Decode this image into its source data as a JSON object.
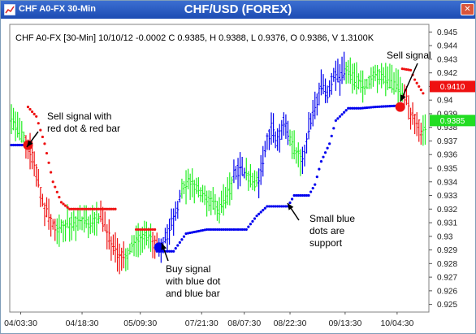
{
  "window": {
    "title": "CHF A0-FX 30-Min",
    "chart_title": "CHF/USD (FOREX)",
    "close_glyph": "✕"
  },
  "colors": {
    "bull": "#0000ee",
    "bear": "#ee1111",
    "neutral": "#22ee22",
    "last_price_bg": "#ee1111",
    "green_label_bg": "#22dd22",
    "window_frame": "#1c4bb3"
  },
  "chart_data": {
    "type": "ohlc",
    "symbol": "CHF A0-FX",
    "interval": "30-Min",
    "info_line": "CHF A0-FX [30-Min] 10/10/12  -0.0002 C 0.9385, H 0.9388, L 0.9376, O 0.9386, V 1.3100K",
    "title": "CHF/USD (FOREX)",
    "ylim": [
      0.9245,
      0.9455
    ],
    "y_ticks": [
      "0.945",
      "0.944",
      "0.943",
      "0.942",
      "0.941",
      "0.94",
      "0.939",
      "0.938",
      "0.937",
      "0.936",
      "0.935",
      "0.934",
      "0.933",
      "0.932",
      "0.931",
      "0.93",
      "0.929",
      "0.928",
      "0.927",
      "0.926",
      "0.925"
    ],
    "x_ticks": [
      "04/03:30",
      "04/18:30",
      "05/09:30",
      "07/21:30",
      "08/07:30",
      "08/22:30",
      "09/13:30",
      "10/04:30"
    ],
    "last_price_labels": [
      {
        "value": 0.941,
        "text": "0.9410",
        "color": "red"
      },
      {
        "value": 0.9385,
        "text": "0.9385",
        "color": "green"
      }
    ],
    "bar_segments": [
      {
        "color": "green",
        "path": [
          [
            0,
            0.9385
          ],
          [
            8,
            0.9375
          ],
          [
            14,
            0.937
          ]
        ]
      },
      {
        "color": "red",
        "path": [
          [
            14,
            0.937
          ],
          [
            22,
            0.9355
          ],
          [
            30,
            0.9325
          ],
          [
            38,
            0.931
          ],
          [
            44,
            0.9305
          ]
        ]
      },
      {
        "color": "green",
        "path": [
          [
            44,
            0.9305
          ],
          [
            54,
            0.931
          ],
          [
            66,
            0.931
          ],
          [
            78,
            0.931
          ],
          [
            86,
            0.9315
          ]
        ]
      },
      {
        "color": "red",
        "path": [
          [
            86,
            0.9315
          ],
          [
            96,
            0.9295
          ],
          [
            104,
            0.9285
          ],
          [
            110,
            0.9285
          ]
        ]
      },
      {
        "color": "green",
        "path": [
          [
            110,
            0.9285
          ],
          [
            118,
            0.9295
          ],
          [
            126,
            0.93
          ],
          [
            136,
            0.9297
          ]
        ]
      },
      {
        "color": "red",
        "path": [
          [
            136,
            0.9297
          ],
          [
            142,
            0.9292
          ]
        ]
      },
      {
        "color": "blue",
        "path": [
          [
            142,
            0.9292
          ],
          [
            148,
            0.9298
          ],
          [
            154,
            0.931
          ],
          [
            160,
            0.9322
          ],
          [
            164,
            0.9335
          ]
        ]
      },
      {
        "color": "green",
        "path": [
          [
            164,
            0.9335
          ],
          [
            172,
            0.934
          ],
          [
            180,
            0.9335
          ],
          [
            190,
            0.9325
          ],
          [
            200,
            0.932
          ],
          [
            208,
            0.933
          ],
          [
            214,
            0.9345
          ]
        ]
      },
      {
        "color": "blue",
        "path": [
          [
            214,
            0.9345
          ],
          [
            220,
            0.935
          ],
          [
            226,
            0.9345
          ]
        ]
      },
      {
        "color": "green",
        "path": [
          [
            226,
            0.9345
          ],
          [
            232,
            0.934
          ],
          [
            238,
            0.934
          ]
        ]
      },
      {
        "color": "blue",
        "path": [
          [
            238,
            0.934
          ],
          [
            244,
            0.9365
          ],
          [
            250,
            0.938
          ],
          [
            256,
            0.937
          ],
          [
            262,
            0.9385
          ],
          [
            268,
            0.937
          ]
        ]
      },
      {
        "color": "green",
        "path": [
          [
            268,
            0.937
          ],
          [
            274,
            0.9362
          ],
          [
            280,
            0.9355
          ]
        ]
      },
      {
        "color": "blue",
        "path": [
          [
            280,
            0.9355
          ],
          [
            286,
            0.938
          ],
          [
            292,
            0.9395
          ],
          [
            298,
            0.941
          ],
          [
            304,
            0.9405
          ],
          [
            310,
            0.942
          ],
          [
            316,
            0.9415
          ],
          [
            322,
            0.9425
          ]
        ]
      },
      {
        "color": "green",
        "path": [
          [
            322,
            0.9425
          ],
          [
            330,
            0.9415
          ],
          [
            340,
            0.941
          ],
          [
            350,
            0.942
          ],
          [
            360,
            0.9415
          ],
          [
            370,
            0.941
          ],
          [
            378,
            0.9405
          ]
        ]
      },
      {
        "color": "red",
        "path": [
          [
            378,
            0.9405
          ],
          [
            384,
            0.939
          ],
          [
            390,
            0.9385
          ],
          [
            396,
            0.9375
          ]
        ]
      },
      {
        "color": "green",
        "path": [
          [
            396,
            0.9375
          ],
          [
            400,
            0.938
          ]
        ]
      }
    ],
    "signal_dots": [
      {
        "color": "blue",
        "path": [
          [
            0,
            0.9367
          ],
          [
            14,
            0.9367
          ]
        ]
      },
      {
        "color": "red",
        "path": [
          [
            16,
            0.9395
          ],
          [
            24,
            0.9388
          ],
          [
            32,
            0.9368
          ],
          [
            40,
            0.934
          ],
          [
            48,
            0.9325
          ],
          [
            56,
            0.932
          ],
          [
            100,
            0.932
          ]
        ]
      },
      {
        "color": "red",
        "path": [
          [
            120,
            0.9305
          ],
          [
            138,
            0.9305
          ]
        ]
      },
      {
        "color": "blue",
        "path": [
          [
            140,
            0.9289
          ],
          [
            156,
            0.9289
          ],
          [
            168,
            0.9302
          ],
          [
            188,
            0.9305
          ],
          [
            226,
            0.9305
          ],
          [
            236,
            0.9315
          ],
          [
            246,
            0.9322
          ],
          [
            266,
            0.9322
          ],
          [
            272,
            0.933
          ],
          [
            286,
            0.933
          ],
          [
            292,
            0.9338
          ],
          [
            298,
            0.9355
          ],
          [
            306,
            0.9368
          ],
          [
            312,
            0.9385
          ],
          [
            324,
            0.9394
          ],
          [
            336,
            0.9394
          ],
          [
            350,
            0.9395
          ],
          [
            374,
            0.9396
          ]
        ]
      },
      {
        "color": "red",
        "path": [
          [
            376,
            0.9423
          ],
          [
            384,
            0.9422
          ],
          [
            388,
            0.9415
          ],
          [
            396,
            0.9405
          ]
        ]
      }
    ],
    "signals": [
      {
        "x": 16,
        "y": 0.9367,
        "color": "red"
      },
      {
        "x": 142,
        "y": 0.9292,
        "color": "blue"
      },
      {
        "x": 374,
        "y": 0.9395,
        "color": "red"
      }
    ],
    "annotations": [
      {
        "lines": [
          "Sell signal with",
          "red dot & red bar"
        ]
      },
      {
        "lines": [
          "Buy signal",
          "with blue dot",
          "and blue bar"
        ]
      },
      {
        "lines": [
          "Small blue",
          "dots are",
          "support"
        ]
      },
      {
        "lines": [
          "Sell signal"
        ]
      }
    ]
  }
}
